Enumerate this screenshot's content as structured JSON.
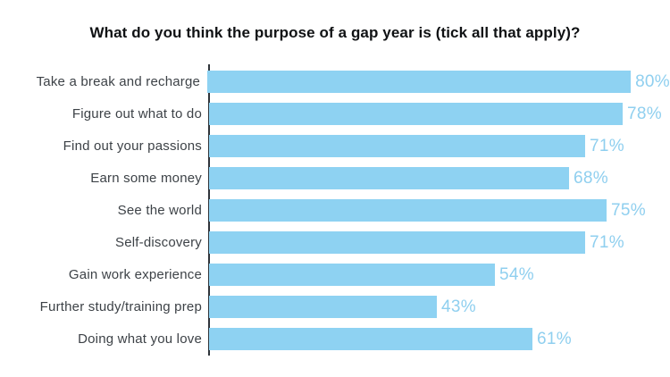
{
  "chart_data": {
    "type": "bar",
    "orientation": "horizontal",
    "title": "What do you think the purpose of a gap year is (tick all that apply)?",
    "categories": [
      "Take a break and recharge",
      "Figure out what to do",
      "Find out your passions",
      "Earn some money",
      "See the world",
      "Self-discovery",
      "Gain work experience",
      "Further study/training prep",
      "Doing what you love"
    ],
    "values": [
      80,
      78,
      71,
      68,
      75,
      71,
      54,
      43,
      61
    ],
    "value_suffix": "%",
    "xlabel": "",
    "ylabel": "",
    "xlim": [
      0,
      87
    ],
    "grid": false,
    "legend": false,
    "value_labels": "outside-end",
    "bar_color": "#8ED2F2",
    "value_label_color": "#8FCFEF",
    "category_label_color": "#3D4247",
    "axis_line_color": "#2F343A",
    "background_color": "#FFFFFF"
  }
}
